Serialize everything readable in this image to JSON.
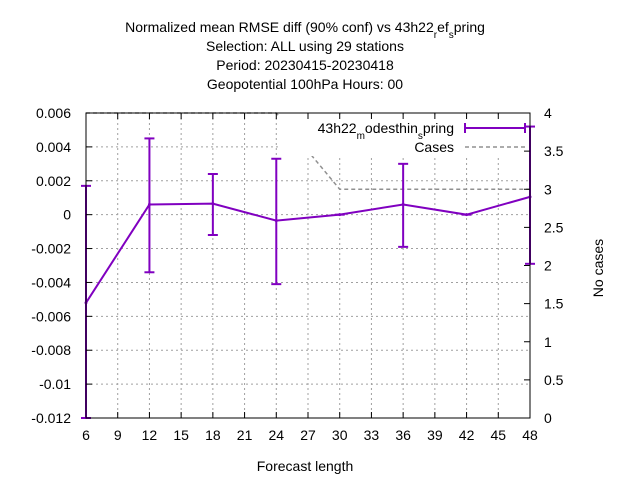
{
  "chart_data": {
    "type": "line",
    "title_lines": [
      {
        "parts": [
          {
            "t": "Normalized mean RMSE diff (90% conf) vs 43h22"
          },
          {
            "t": "r",
            "sub": true
          },
          {
            "t": "ef"
          },
          {
            "t": "s",
            "sub": true
          },
          {
            "t": "pring"
          }
        ]
      },
      {
        "parts": [
          {
            "t": "Selection: ALL using    29 stations"
          }
        ]
      },
      {
        "parts": [
          {
            "t": "Period: 20230415-20230418"
          }
        ]
      },
      {
        "parts": [
          {
            "t": "Geopotential 100hPa   Hours:  00"
          }
        ]
      }
    ],
    "xlabel": "Forecast length",
    "ylabel_right": "No cases",
    "xlim": [
      6,
      48
    ],
    "ylim": [
      -0.012,
      0.006
    ],
    "y2lim": [
      0,
      4
    ],
    "xticks": [
      6,
      9,
      12,
      15,
      18,
      21,
      24,
      27,
      30,
      33,
      36,
      39,
      42,
      45,
      48
    ],
    "yticks": [
      -0.012,
      -0.01,
      -0.008,
      -0.006,
      -0.004,
      -0.002,
      0,
      0.002,
      0.004,
      0.006
    ],
    "ytick_labels": [
      "-0.012",
      "-0.01",
      "-0.008",
      "-0.006",
      "-0.004",
      "-0.002",
      "0",
      "0.002",
      "0.004",
      "0.006"
    ],
    "y2ticks": [
      0,
      0.5,
      1,
      1.5,
      2,
      2.5,
      3,
      3.5,
      4
    ],
    "y2tick_labels": [
      "0",
      "0.5",
      "1",
      "1.5",
      "2",
      "2.5",
      "3",
      "3.5",
      "4"
    ],
    "grid": true,
    "legend_position": "top-right",
    "series": [
      {
        "name_parts": [
          {
            "t": "43h22"
          },
          {
            "t": "m",
            "sub": true
          },
          {
            "t": "odesthin"
          },
          {
            "t": "s",
            "sub": true
          },
          {
            "t": "pring"
          }
        ],
        "color": "#8000c0",
        "style": "errorbars",
        "x": [
          6,
          12,
          18,
          24,
          30,
          36,
          42,
          48
        ],
        "y": [
          -0.0052,
          0.0006,
          0.00065,
          -0.00035,
          0.0,
          0.0006,
          0.0,
          0.00105
        ],
        "err_low": [
          -0.012,
          -0.0034,
          -0.0012,
          -0.0041,
          0.0,
          -0.0019,
          0.0,
          -0.0029
        ],
        "err_high": [
          0.0017,
          0.0045,
          0.0024,
          0.0033,
          0.0,
          0.003,
          0.0,
          0.0052
        ]
      },
      {
        "name": "Cases",
        "color": "#909090",
        "style": "dashed",
        "axis": "right",
        "x": [
          6,
          12,
          18,
          24,
          30,
          36,
          42,
          48
        ],
        "y": [
          4,
          4,
          4,
          4,
          3,
          3,
          3,
          3
        ]
      }
    ]
  }
}
